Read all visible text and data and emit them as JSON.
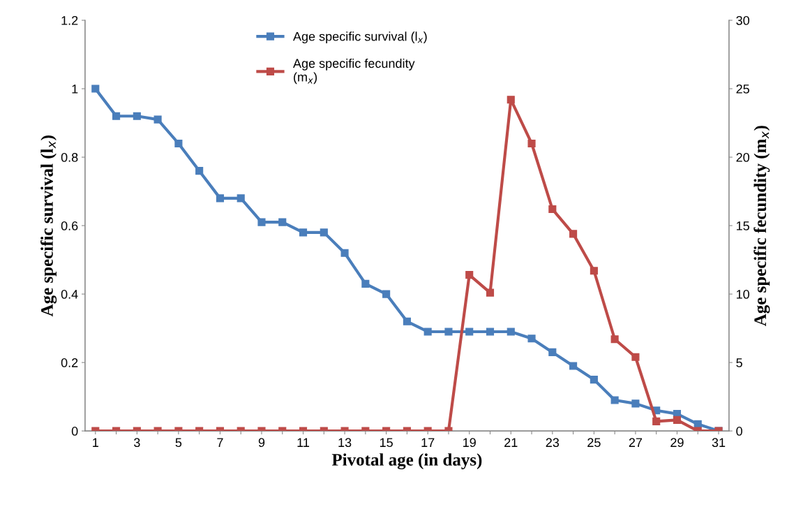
{
  "chart_data": {
    "type": "line",
    "categories": [
      "1",
      null,
      "3",
      null,
      "5",
      null,
      "7",
      null,
      "9",
      null,
      "11",
      null,
      "13",
      null,
      "15",
      null,
      "17",
      null,
      "19",
      null,
      "21",
      null,
      "23",
      null,
      "25",
      null,
      "27",
      null,
      "29",
      null,
      "31"
    ],
    "xlabel": "Pivotal age (in days)",
    "ylabel": "Age specific survival (l$_{x}$)",
    "y2label": "Age specific fecundity (m$_{x}$)",
    "ylim": [
      0,
      1.2
    ],
    "yticks": [
      0,
      0.2,
      0.4,
      0.6,
      0.8,
      1,
      1.2
    ],
    "y2lim": [
      0,
      30
    ],
    "y2ticks": [
      0,
      5,
      10,
      15,
      20,
      25,
      30
    ],
    "marker": "square",
    "line_style": "solid",
    "legend": "top",
    "grid": false,
    "series": [
      {
        "name": "Age specific survival (l$_{x}$)",
        "color": "#4a7ebb",
        "values": [
          1,
          0.92,
          0.92,
          0.91,
          0.84,
          0.76,
          0.68,
          0.68,
          0.61,
          0.61,
          0.58,
          0.58,
          0.52,
          0.43,
          0.4,
          0.32,
          0.29,
          0.29,
          0.29,
          0.29,
          0.29,
          0.27,
          0.23,
          0.19,
          0.15,
          0.09,
          0.08,
          0.06,
          0.05,
          0.02,
          0
        ]
      },
      {
        "name": "Age specific fecundity\n(m$_{x}$)",
        "color": "#be4b48",
        "axis": "y2",
        "values": [
          0,
          0,
          0,
          0,
          0,
          0,
          0,
          0,
          0,
          0,
          0,
          0,
          0,
          0,
          0,
          0,
          0,
          0,
          11.4,
          10.1,
          24.2,
          21.0,
          16.2,
          14.4,
          11.7,
          6.7,
          5.4,
          0.7,
          0.8,
          0,
          0
        ]
      }
    ]
  }
}
